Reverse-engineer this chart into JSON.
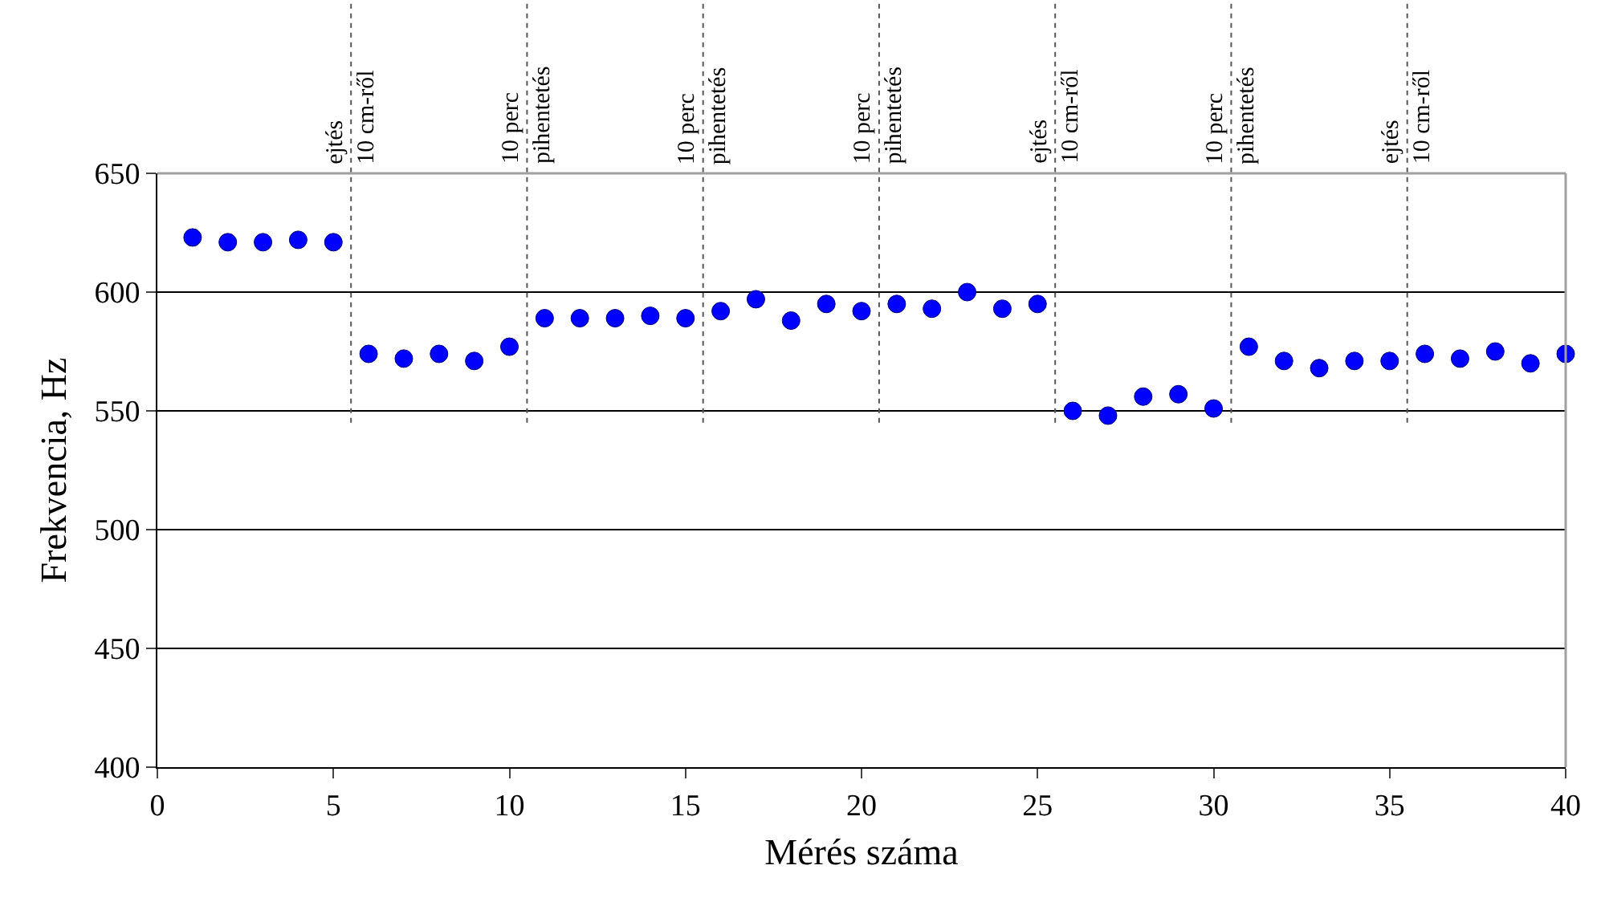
{
  "chart_data": {
    "type": "scatter",
    "xlabel": "Mérés száma",
    "ylabel": "Frekvencia, Hz",
    "x": [
      1,
      2,
      3,
      4,
      5,
      6,
      7,
      8,
      9,
      10,
      11,
      12,
      13,
      14,
      15,
      16,
      17,
      18,
      19,
      20,
      21,
      22,
      23,
      24,
      25,
      26,
      27,
      28,
      29,
      30,
      31,
      32,
      33,
      34,
      35,
      36,
      37,
      38,
      39,
      40
    ],
    "series": [
      {
        "color": "#0000ff",
        "values": [
          623,
          621,
          621,
          622,
          621,
          574,
          572,
          574,
          571,
          577,
          589,
          589,
          589,
          590,
          589,
          592,
          597,
          588,
          595,
          592,
          595,
          593,
          600,
          593,
          595,
          550,
          548,
          556,
          557,
          551,
          577,
          571,
          568,
          571,
          571,
          574,
          572,
          575,
          570,
          574
        ]
      }
    ],
    "xlim": [
      0,
      40
    ],
    "xticks": [
      0,
      5,
      10,
      15,
      20,
      25,
      30,
      35,
      40
    ],
    "ylim": [
      400,
      650
    ],
    "yticks": [
      400,
      450,
      500,
      550,
      600,
      650
    ],
    "grid": "y",
    "legend": false,
    "marker": "circle",
    "ref_lines": [
      {
        "axis": "x",
        "value": 5.5,
        "label": "ejtés\n10 cm-ről",
        "line_style": "dotted"
      },
      {
        "axis": "x",
        "value": 10.5,
        "label": "10 perc\npihentetés",
        "line_style": "dotted"
      },
      {
        "axis": "x",
        "value": 15.5,
        "label": "10 perc\npihentetés",
        "line_style": "dotted"
      },
      {
        "axis": "x",
        "value": 20.5,
        "label": "10 perc\npihentetés",
        "line_style": "dotted"
      },
      {
        "axis": "x",
        "value": 25.5,
        "label": "ejtés\n10 cm-ről",
        "line_style": "dotted"
      },
      {
        "axis": "x",
        "value": 30.5,
        "label": "10 perc\npihentetés",
        "line_style": "dotted"
      },
      {
        "axis": "x",
        "value": 35.5,
        "label": "ejtés\n10 cm-ről",
        "line_style": "dotted"
      }
    ]
  }
}
